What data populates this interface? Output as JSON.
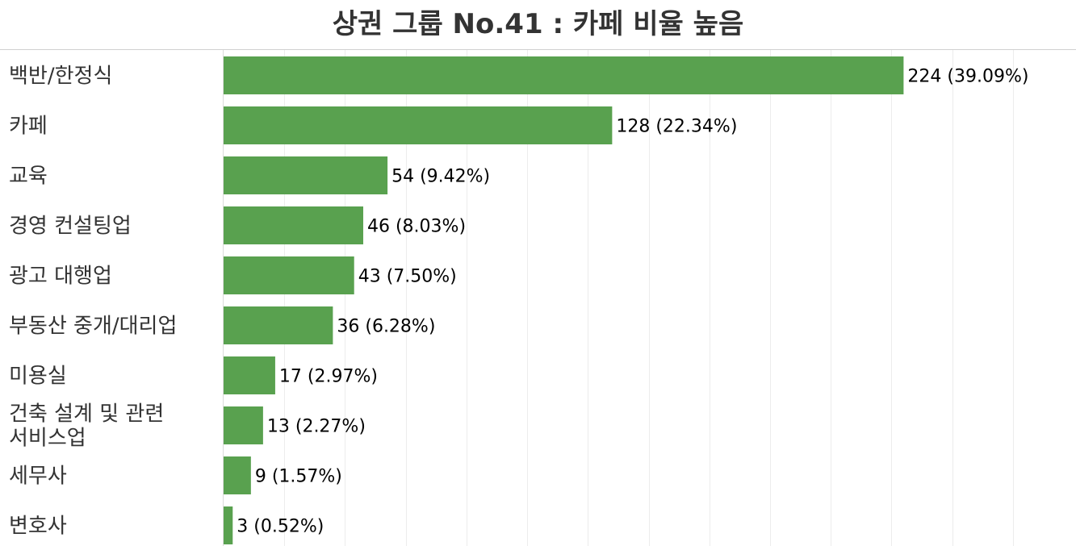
{
  "chart_data": {
    "type": "bar",
    "orientation": "horizontal",
    "title": "상권 그룹 No.41 : 카페 비율 높음",
    "categories": [
      "백반/한정식",
      "카페",
      "교육",
      "경영 컨설팅업",
      "광고 대행업",
      "부동산 중개/대리업",
      "미용실",
      "건축 설계 및 관련 서비스업",
      "세무사",
      "변호사"
    ],
    "category_lines": [
      [
        "백반/한정식"
      ],
      [
        "카페"
      ],
      [
        "교육"
      ],
      [
        "경영 컨설팅업"
      ],
      [
        "광고 대행업"
      ],
      [
        "부동산 중개/대리업"
      ],
      [
        "미용실"
      ],
      [
        "건축 설계 및 관련",
        "서비스업"
      ],
      [
        "세무사"
      ],
      [
        "변호사"
      ]
    ],
    "values": [
      224,
      128,
      54,
      46,
      43,
      36,
      17,
      13,
      9,
      3
    ],
    "value_labels": [
      "224 (39.09%)",
      "128 (22.34%)",
      "54 (9.42%)",
      "46 (8.03%)",
      "43 (7.50%)",
      "36 (6.28%)",
      "17 (2.97%)",
      "13 (2.27%)",
      "9 (1.57%)",
      "3 (0.52%)"
    ],
    "xlim": [
      0,
      280
    ],
    "grid": true,
    "bar_color": "#59a14f",
    "grid_color": "#ececec",
    "text_color": "#333333",
    "label_color": "#000000"
  }
}
